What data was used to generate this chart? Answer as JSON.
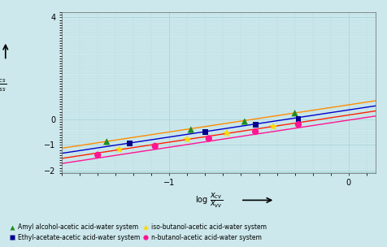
{
  "background_color": "#cce8ec",
  "plot_bg_color": "#cce8ec",
  "xlim": [
    -1.6,
    0.15
  ],
  "ylim": [
    -2.1,
    4.2
  ],
  "xticks": [
    -1.0,
    0.0
  ],
  "yticks": [
    -2,
    -1,
    0,
    4
  ],
  "systems": [
    {
      "name": "Amyl alcohol-acetic acid-water system",
      "line_color": "#ff8c00",
      "marker": "^",
      "marker_color": "#228B22",
      "marker_size": 6,
      "line_x": [
        -1.6,
        0.15
      ],
      "line_y": [
        -1.13,
        0.73
      ],
      "points_x": [
        -1.35,
        -0.88,
        -0.58,
        -0.3
      ],
      "points_y": [
        -0.87,
        -0.4,
        -0.08,
        0.25
      ]
    },
    {
      "name": "Ethyl-acetate-acetic acid-water system",
      "line_color": "#0000cc",
      "marker": "s",
      "marker_color": "#00008B",
      "marker_size": 5,
      "line_x": [
        -1.6,
        0.15
      ],
      "line_y": [
        -1.33,
        0.53
      ],
      "points_x": [
        -1.22,
        -0.8,
        -0.52,
        -0.28
      ],
      "points_y": [
        -0.95,
        -0.5,
        -0.22,
        0.02
      ]
    },
    {
      "name": "iso-butanol-acetic acid-water system",
      "line_color": "#ff2200",
      "marker": "*",
      "marker_color": "#ffd700",
      "marker_size": 8,
      "line_x": [
        -1.6,
        0.15
      ],
      "line_y": [
        -1.53,
        0.33
      ],
      "points_x": [
        -1.28,
        -0.9,
        -0.68,
        -0.42
      ],
      "points_y": [
        -1.18,
        -0.78,
        -0.55,
        -0.28
      ]
    },
    {
      "name": "n-butanol-acetic acid-water system",
      "line_color": "#ff1493",
      "marker": "o",
      "marker_color": "#ff1493",
      "marker_size": 6,
      "line_x": [
        -1.6,
        0.15
      ],
      "line_y": [
        -1.73,
        0.13
      ],
      "points_x": [
        -1.4,
        -1.08,
        -0.78,
        -0.52,
        -0.28
      ],
      "points_y": [
        -1.4,
        -1.05,
        -0.75,
        -0.48,
        -0.2
      ]
    }
  ],
  "grid_major_color": "#a8d4d8",
  "grid_minor_color": "#b8dce0",
  "bottom_line_color": "#008080"
}
